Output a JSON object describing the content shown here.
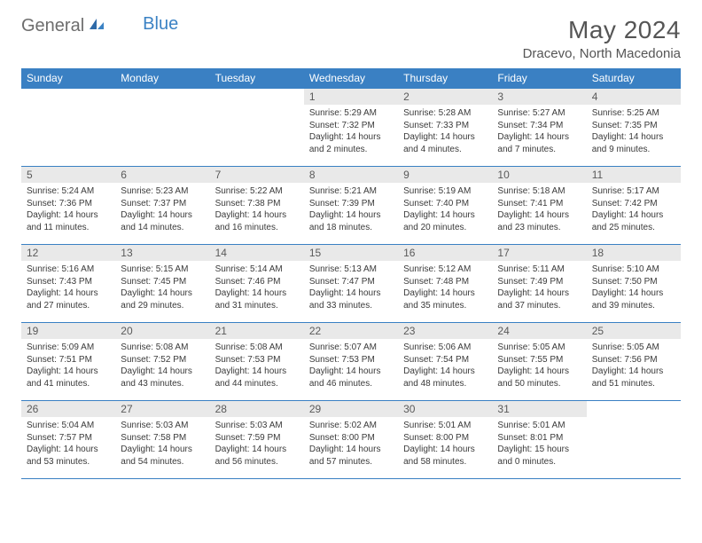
{
  "brand": {
    "part1": "General",
    "part2": "Blue"
  },
  "title": "May 2024",
  "location": "Dracevo, North Macedonia",
  "colors": {
    "header_bg": "#3a80c3",
    "header_fg": "#ffffff",
    "daynum_bg": "#e9e9e9",
    "text": "#3a3a3a",
    "title": "#555555",
    "brand_gray": "#6d6d6d",
    "brand_blue": "#3b82c4",
    "rule": "#3a80c3"
  },
  "weekdays": [
    "Sunday",
    "Monday",
    "Tuesday",
    "Wednesday",
    "Thursday",
    "Friday",
    "Saturday"
  ],
  "weeks": [
    [
      null,
      null,
      null,
      {
        "n": "1",
        "sr": "Sunrise: 5:29 AM",
        "ss": "Sunset: 7:32 PM",
        "dl": "Daylight: 14 hours and 2 minutes."
      },
      {
        "n": "2",
        "sr": "Sunrise: 5:28 AM",
        "ss": "Sunset: 7:33 PM",
        "dl": "Daylight: 14 hours and 4 minutes."
      },
      {
        "n": "3",
        "sr": "Sunrise: 5:27 AM",
        "ss": "Sunset: 7:34 PM",
        "dl": "Daylight: 14 hours and 7 minutes."
      },
      {
        "n": "4",
        "sr": "Sunrise: 5:25 AM",
        "ss": "Sunset: 7:35 PM",
        "dl": "Daylight: 14 hours and 9 minutes."
      }
    ],
    [
      {
        "n": "5",
        "sr": "Sunrise: 5:24 AM",
        "ss": "Sunset: 7:36 PM",
        "dl": "Daylight: 14 hours and 11 minutes."
      },
      {
        "n": "6",
        "sr": "Sunrise: 5:23 AM",
        "ss": "Sunset: 7:37 PM",
        "dl": "Daylight: 14 hours and 14 minutes."
      },
      {
        "n": "7",
        "sr": "Sunrise: 5:22 AM",
        "ss": "Sunset: 7:38 PM",
        "dl": "Daylight: 14 hours and 16 minutes."
      },
      {
        "n": "8",
        "sr": "Sunrise: 5:21 AM",
        "ss": "Sunset: 7:39 PM",
        "dl": "Daylight: 14 hours and 18 minutes."
      },
      {
        "n": "9",
        "sr": "Sunrise: 5:19 AM",
        "ss": "Sunset: 7:40 PM",
        "dl": "Daylight: 14 hours and 20 minutes."
      },
      {
        "n": "10",
        "sr": "Sunrise: 5:18 AM",
        "ss": "Sunset: 7:41 PM",
        "dl": "Daylight: 14 hours and 23 minutes."
      },
      {
        "n": "11",
        "sr": "Sunrise: 5:17 AM",
        "ss": "Sunset: 7:42 PM",
        "dl": "Daylight: 14 hours and 25 minutes."
      }
    ],
    [
      {
        "n": "12",
        "sr": "Sunrise: 5:16 AM",
        "ss": "Sunset: 7:43 PM",
        "dl": "Daylight: 14 hours and 27 minutes."
      },
      {
        "n": "13",
        "sr": "Sunrise: 5:15 AM",
        "ss": "Sunset: 7:45 PM",
        "dl": "Daylight: 14 hours and 29 minutes."
      },
      {
        "n": "14",
        "sr": "Sunrise: 5:14 AM",
        "ss": "Sunset: 7:46 PM",
        "dl": "Daylight: 14 hours and 31 minutes."
      },
      {
        "n": "15",
        "sr": "Sunrise: 5:13 AM",
        "ss": "Sunset: 7:47 PM",
        "dl": "Daylight: 14 hours and 33 minutes."
      },
      {
        "n": "16",
        "sr": "Sunrise: 5:12 AM",
        "ss": "Sunset: 7:48 PM",
        "dl": "Daylight: 14 hours and 35 minutes."
      },
      {
        "n": "17",
        "sr": "Sunrise: 5:11 AM",
        "ss": "Sunset: 7:49 PM",
        "dl": "Daylight: 14 hours and 37 minutes."
      },
      {
        "n": "18",
        "sr": "Sunrise: 5:10 AM",
        "ss": "Sunset: 7:50 PM",
        "dl": "Daylight: 14 hours and 39 minutes."
      }
    ],
    [
      {
        "n": "19",
        "sr": "Sunrise: 5:09 AM",
        "ss": "Sunset: 7:51 PM",
        "dl": "Daylight: 14 hours and 41 minutes."
      },
      {
        "n": "20",
        "sr": "Sunrise: 5:08 AM",
        "ss": "Sunset: 7:52 PM",
        "dl": "Daylight: 14 hours and 43 minutes."
      },
      {
        "n": "21",
        "sr": "Sunrise: 5:08 AM",
        "ss": "Sunset: 7:53 PM",
        "dl": "Daylight: 14 hours and 44 minutes."
      },
      {
        "n": "22",
        "sr": "Sunrise: 5:07 AM",
        "ss": "Sunset: 7:53 PM",
        "dl": "Daylight: 14 hours and 46 minutes."
      },
      {
        "n": "23",
        "sr": "Sunrise: 5:06 AM",
        "ss": "Sunset: 7:54 PM",
        "dl": "Daylight: 14 hours and 48 minutes."
      },
      {
        "n": "24",
        "sr": "Sunrise: 5:05 AM",
        "ss": "Sunset: 7:55 PM",
        "dl": "Daylight: 14 hours and 50 minutes."
      },
      {
        "n": "25",
        "sr": "Sunrise: 5:05 AM",
        "ss": "Sunset: 7:56 PM",
        "dl": "Daylight: 14 hours and 51 minutes."
      }
    ],
    [
      {
        "n": "26",
        "sr": "Sunrise: 5:04 AM",
        "ss": "Sunset: 7:57 PM",
        "dl": "Daylight: 14 hours and 53 minutes."
      },
      {
        "n": "27",
        "sr": "Sunrise: 5:03 AM",
        "ss": "Sunset: 7:58 PM",
        "dl": "Daylight: 14 hours and 54 minutes."
      },
      {
        "n": "28",
        "sr": "Sunrise: 5:03 AM",
        "ss": "Sunset: 7:59 PM",
        "dl": "Daylight: 14 hours and 56 minutes."
      },
      {
        "n": "29",
        "sr": "Sunrise: 5:02 AM",
        "ss": "Sunset: 8:00 PM",
        "dl": "Daylight: 14 hours and 57 minutes."
      },
      {
        "n": "30",
        "sr": "Sunrise: 5:01 AM",
        "ss": "Sunset: 8:00 PM",
        "dl": "Daylight: 14 hours and 58 minutes."
      },
      {
        "n": "31",
        "sr": "Sunrise: 5:01 AM",
        "ss": "Sunset: 8:01 PM",
        "dl": "Daylight: 15 hours and 0 minutes."
      },
      null
    ]
  ]
}
